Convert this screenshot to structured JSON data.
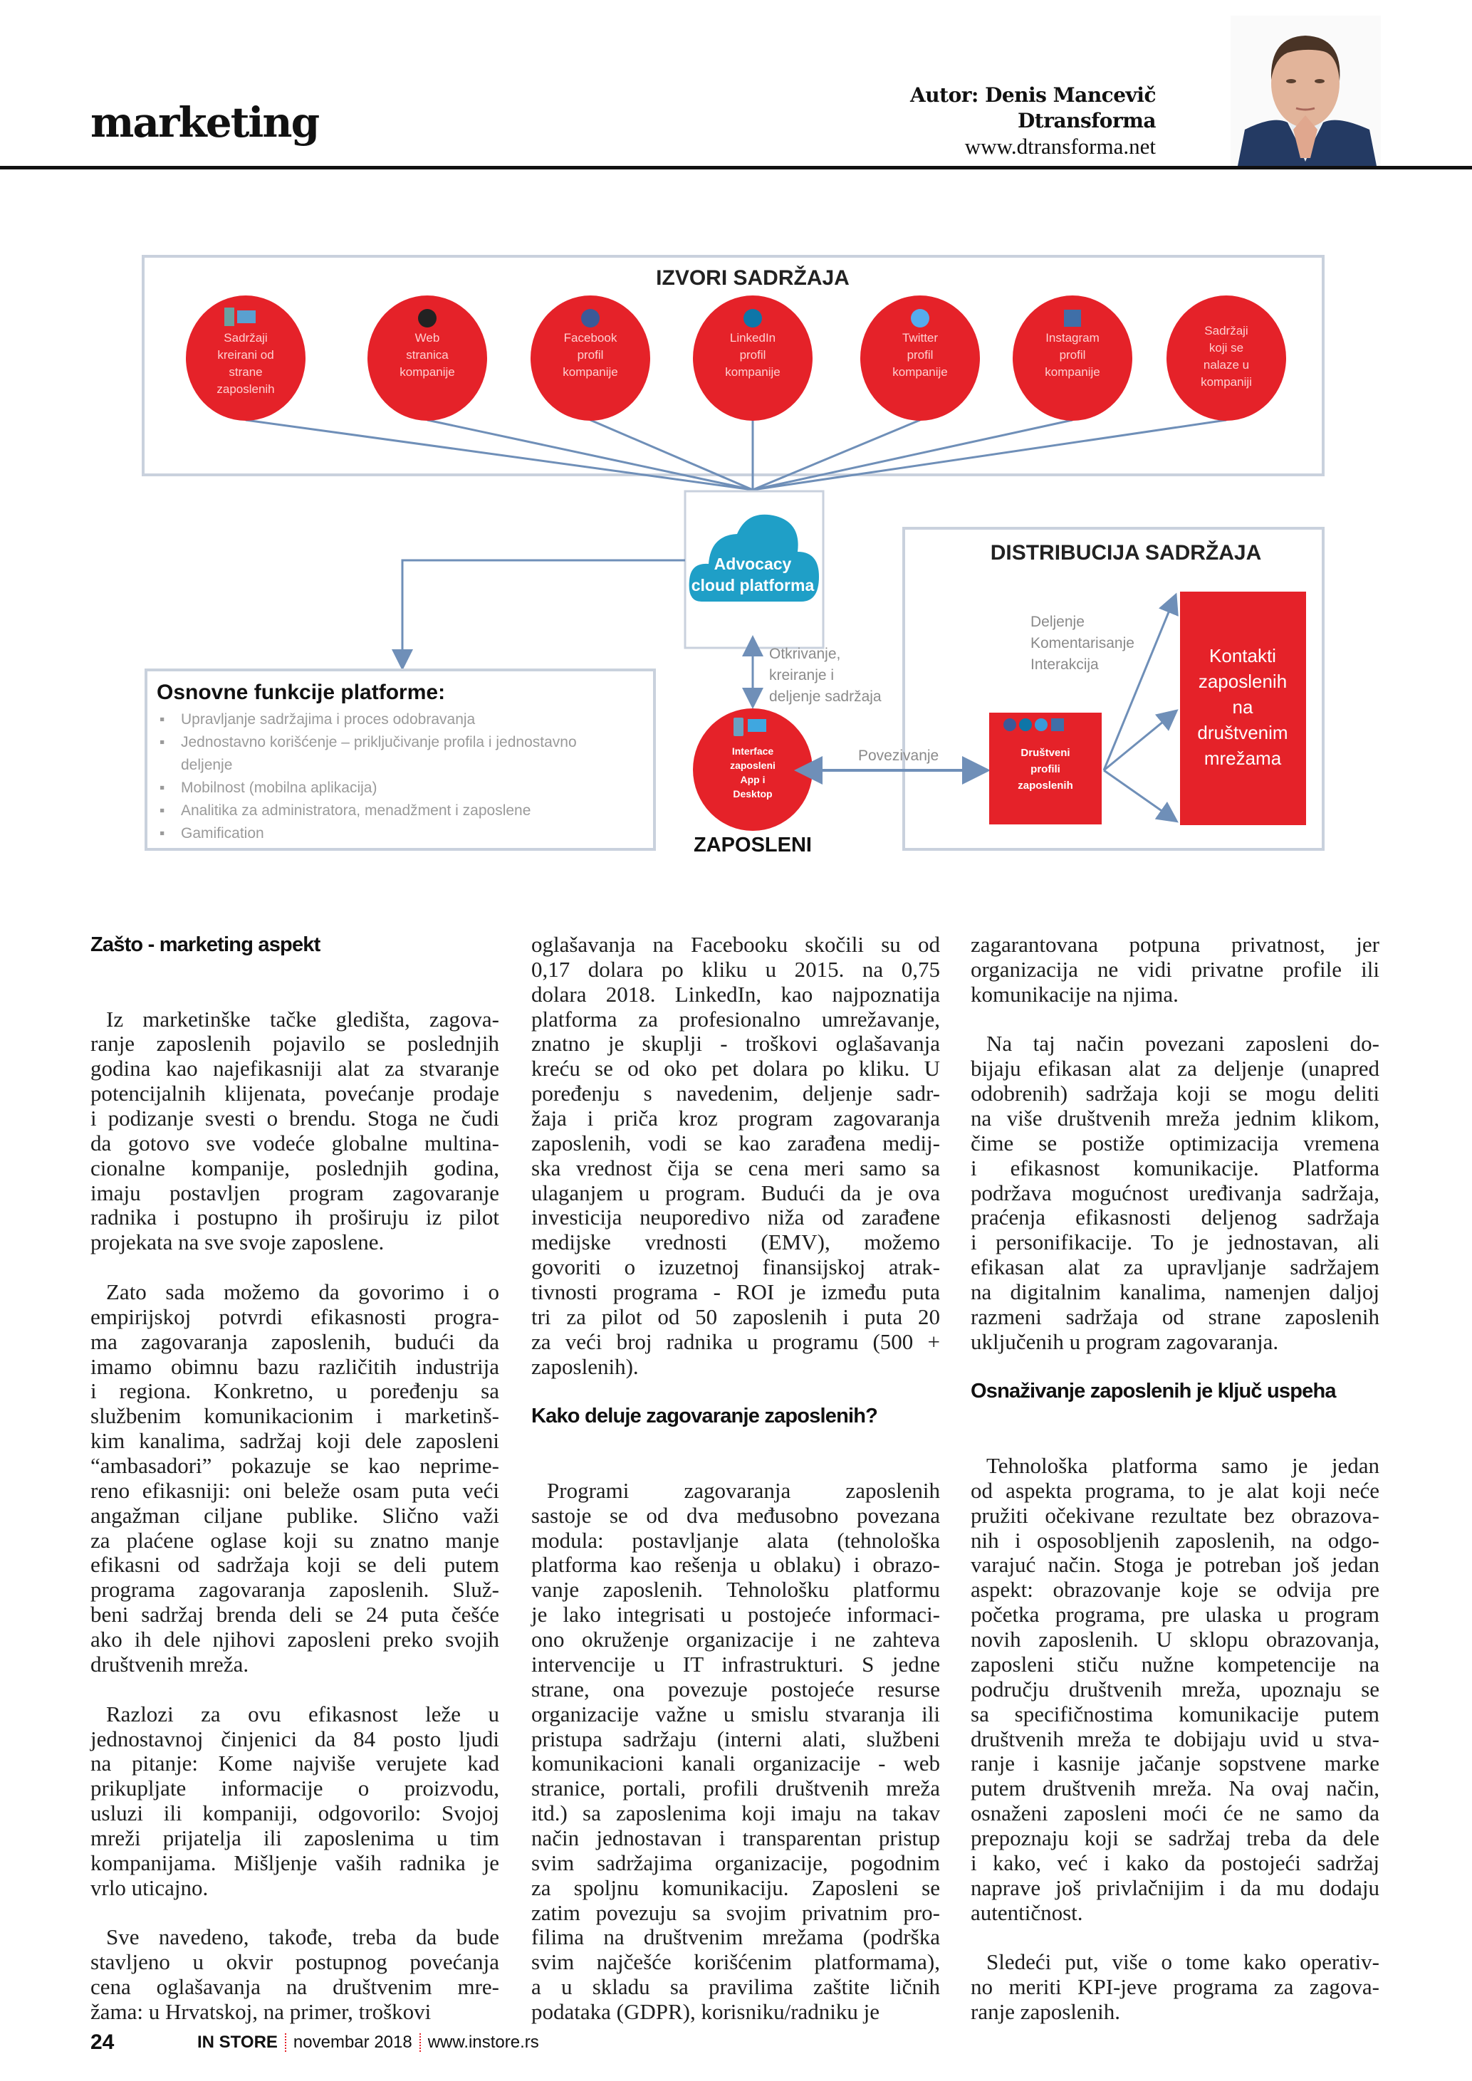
{
  "header": {
    "section": "marketing",
    "author_line": "Autor: Denis Mancevič",
    "company": "Dtransforma",
    "website": "www.dtransforma.net"
  },
  "colors": {
    "red": "#e52229",
    "cloud": "#1f9fc7",
    "line": "#6f8fb8",
    "box_border": "#c9d1dd",
    "muted_text": "#8a8a8a"
  },
  "diagram": {
    "sources_title": "IZVORI SADRŽAJA",
    "sources": [
      {
        "icon": "devices-icon",
        "lines": [
          "Sadržaji",
          "kreirani od",
          "strane",
          "zaposlenih"
        ]
      },
      {
        "icon": "globe-icon",
        "lines": [
          "Web",
          "stranica",
          "kompanije"
        ]
      },
      {
        "icon": "facebook-icon",
        "lines": [
          "Facebook",
          "profil",
          "kompanije"
        ]
      },
      {
        "icon": "linkedin-icon",
        "lines": [
          "LinkedIn",
          "profil",
          "kompanije"
        ]
      },
      {
        "icon": "twitter-icon",
        "lines": [
          "Twitter",
          "profil",
          "kompanije"
        ]
      },
      {
        "icon": "instagram-icon",
        "lines": [
          "Instagram",
          "profil",
          "kompanije"
        ]
      },
      {
        "icon": "",
        "lines": [
          "Sadržaji",
          "koji se",
          "nalaze u",
          "kompaniji"
        ]
      }
    ],
    "cloud": [
      "Advocacy",
      "cloud platforma"
    ],
    "discover_label": [
      "Otkrivanje,",
      "kreiranje i",
      "deljenje sadržaja"
    ],
    "employees_circle": [
      "Interface",
      "zaposleni",
      "App i",
      "Desktop"
    ],
    "employees_label": "ZAPOSLENI",
    "connect_label": "Povezivanje",
    "distribution_title": "DISTRIBUCIJA SADRŽAJA",
    "actions": [
      "Deljenje",
      "Komentarisanje",
      "Interakcija"
    ],
    "profiles_box": [
      "Društveni",
      "profili",
      "zaposlenih"
    ],
    "contacts_box": [
      "Kontakti",
      "zaposlenih",
      "na",
      "društvenim",
      "mrežama"
    ],
    "functions_title": "Osnovne funkcije platforme:",
    "functions": [
      [
        "Upravljanje sadržajima i proces odobravanja"
      ],
      [
        "Jednostavno korišćenje – priključivanje profila i jednostavno",
        "deljenje"
      ],
      [
        "Mobilnost (mobilna aplikacija)"
      ],
      [
        "Analitika za administratora, menadžment i zaposlene"
      ],
      [
        "Gamification"
      ]
    ]
  },
  "columns": [
    [
      {
        "type": "h",
        "text": "Zašto - marketing aspekt"
      },
      {
        "type": "p",
        "lines": [
          "Iz marketinške tačke gledišta, zagova-",
          "ranje zaposlenih pojavilo se poslednjih",
          "godina kao najefikasniji alat za stvaranje",
          "potencijalnih klijenata, povećanje prodaje",
          "i podizanje svesti o brendu. Stoga ne čudi",
          "da gotovo sve vodeće globalne multina-",
          "cionalne kompanije, poslednjih godina,",
          "imaju postavljen program zagovaranje",
          "radnika i postupno ih proširuju iz pilot",
          "projekata na sve svoje zaposlene."
        ]
      },
      {
        "type": "p",
        "lines": [
          "Zato sada možemo da govorimo i o",
          "empirijskoj potvrdi efikasnosti progra-",
          "ma zagovaranja zaposlenih, budući da",
          "imamo obimnu bazu različitih industrija",
          "i regiona. Konkretno, u poređenju sa",
          "službenim komunikacionim i marketinš-",
          "kim kanalima, sadržaj koji dele zaposleni",
          "“ambasadori”  pokazuje se kao neprime-",
          "reno efikasniji: oni beleže osam puta veći",
          "angažman ciljane publike. Slično važi",
          "za plaćene oglase koji su znatno manje",
          "efikasni od sadržaja koji se deli putem",
          "programa zagovaranja zaposlenih. Služ-",
          "beni sadržaj brenda deli se 24 puta češće",
          "ako ih dele njihovi zaposleni preko svojih",
          "društvenih mreža."
        ]
      },
      {
        "type": "p",
        "lines": [
          "Razlozi za ovu efikasnost leže u",
          "jednostavnoj činjenici da 84 posto ljudi",
          "na pitanje: Kome najviše verujete kad",
          "prikupljate informacije o proizvodu,",
          "usluzi ili kompaniji, odgovorilo: Svojoj",
          "mreži prijatelja ili zaposlenima u tim",
          "kompanijama. Mišljenje vaših radnika je",
          "vrlo uticajno."
        ]
      },
      {
        "type": "p",
        "cont": true,
        "lines": [
          "Sve navedeno, takođe, treba da bude",
          "stavljeno u okvir postupnog povećanja",
          "cena oglašavanja na društvenim mre-",
          "žama: u Hrvatskoj, na primer, troškovi"
        ]
      }
    ],
    [
      {
        "type": "p",
        "noindent": true,
        "lines": [
          "oglašavanja na Facebooku skočili su od",
          "0,17 dolara po kliku u 2015. na 0,75",
          "dolara 2018. LinkedIn, kao najpoznatija",
          "platforma za profesionalno umrežavanje,",
          "znatno je skuplji - troškovi oglašavanja",
          "kreću se od oko pet dolara po kliku. U",
          "poređenju s navedenim, deljenje sadr-",
          "žaja i priča kroz program zagovaranja",
          "zaposlenih, vodi se kao zarađena medij-",
          "ska vrednost čija se cena meri samo sa",
          "ulaganjem u program. Budući da je ova",
          "investicija neuporedivo niža od zarađene",
          "medijske vrednosti (EMV), možemo",
          "govoriti o izuzetnoj finansijskoj atrak-",
          "tivnosti programa - ROI je između puta",
          "tri za pilot od 50 zaposlenih i puta 20",
          "za veći broj radnika u programu (500 +",
          "zaposlenih)."
        ]
      },
      {
        "type": "h",
        "text": "Kako deluje zagovaranje zaposlenih?"
      },
      {
        "type": "p",
        "cont": true,
        "lines": [
          "Programi zagovaranja zaposlenih",
          "sastoje se od dva međusobno povezana",
          "modula: postavljanje alata (tehnološka",
          "platforma kao rešenja u oblaku) i obrazo-",
          "vanje zaposlenih. Tehnološku platformu",
          "je lako integrisati u postojeće informaci-",
          "ono okruženje organizacije i ne zahteva",
          "intervencije u IT infrastrukturi. S jedne",
          "strane, ona povezuje postojeće resurse",
          "organizacije važne u smislu stvaranja ili",
          "pristupa sadržaju (interni alati, službeni",
          "komunikacioni kanali organizacije - web",
          "stranice, portali, profili društvenih mreža",
          "itd.) sa zaposlenima koji imaju na takav",
          "način jednostavan i transparentan pristup",
          "svim sadržajima organizacije, pogodnim",
          "za spoljnu komunikaciju. Zaposleni se",
          "zatim povezuju sa svojim privatnim pro-",
          "filima na društvenim mrežama (podrška",
          "svim najčešće korišćenim platformama),",
          "a u skladu sa pravilima zaštite ličnih",
          "podataka (GDPR), korisniku/radniku je"
        ]
      }
    ],
    [
      {
        "type": "p",
        "noindent": true,
        "lines": [
          "zagarantovana potpuna privatnost, jer",
          "organizacija ne vidi privatne profile ili",
          "komunikacije na njima."
        ]
      },
      {
        "type": "p",
        "lines": [
          "Na taj način povezani zaposleni do-",
          "bijaju efikasan alat za deljenje (unapred",
          "odobrenih) sadržaja koji se mogu deliti",
          "na više društvenih mreža jednim klikom,",
          "čime se postiže optimizacija vremena",
          "i efikasnost komunikacije. Platforma",
          "podržava mogućnost uređivanja sadržaja,",
          "praćenja efikasnosti deljenog sadržaja",
          "i personifikacije. To je jednostavan, ali",
          "efikasan alat za upravljanje sadržajem",
          "na digitalnim kanalima, namenjen daljoj",
          "razmeni sadržaja od strane zaposlenih",
          "uključenih u program zagovaranja."
        ]
      },
      {
        "type": "h",
        "text": "Osnaživanje zaposlenih je ključ uspeha"
      },
      {
        "type": "p",
        "lines": [
          "Tehnološka platforma samo je jedan",
          "od aspekta programa, to je alat koji neće",
          "pružiti očekivane rezultate bez obrazova-",
          "nih i osposobljenih zaposlenih, na odgo-",
          "varajuć način. Stoga je potreban još jedan",
          "aspekt: obrazovanje koje se odvija pre",
          "početka programa, pre ulaska u program",
          "novih zaposlenih. U sklopu obrazovanja,",
          "zaposleni stiču nužne kompetencije na",
          "području društvenih mreža, upoznaju se",
          "sa specifičnostima komunikacije putem",
          "društvenih mreža te dobijaju uvid u stva-",
          "ranje i kasnije jačanje sopstvene marke",
          "putem društvenih mreža. Na ovaj način,",
          "osnaženi zaposleni moći će ne samo da",
          "prepoznaju koji se sadržaj treba da dele",
          "i kako, već i kako da postojeći sadržaj",
          "naprave još privlačnijim i da mu dodaju",
          "autentičnost."
        ]
      },
      {
        "type": "p",
        "lines": [
          "Sledeći put, više o tome kako operativ-",
          "no meriti KPI-jeve programa za zagova-",
          "ranje zaposlenih."
        ]
      }
    ]
  ],
  "footer": {
    "page_number": "24",
    "magazine_logo": "IN STORE",
    "issue": "novembar 2018",
    "website": "www.instore.rs"
  }
}
